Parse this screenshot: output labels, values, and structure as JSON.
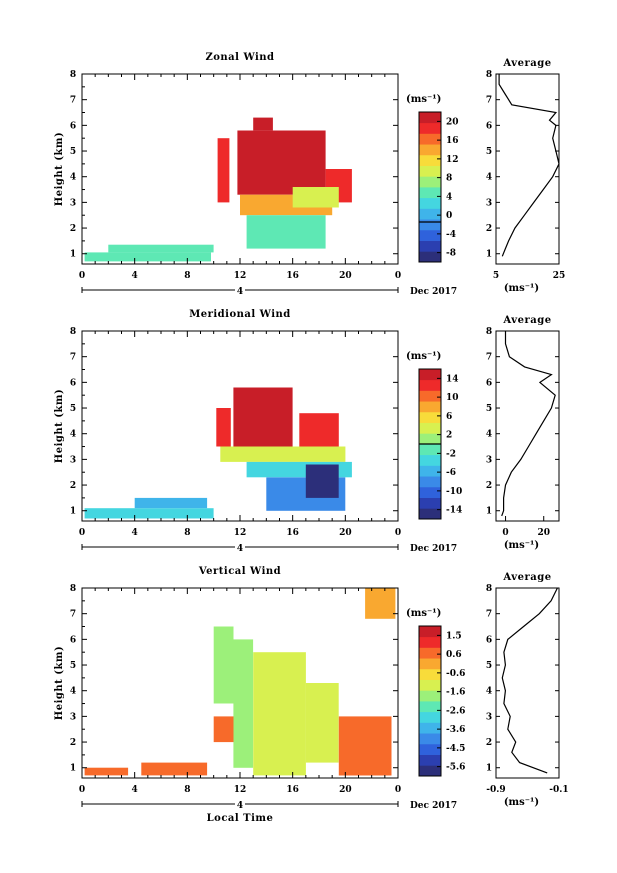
{
  "figure": {
    "date_label": "Dec 2017",
    "day_label": "4",
    "xlabel": "Local Time",
    "ylabel": "Height (km)",
    "unit": "(ms⁻¹)",
    "avg_title": "Average"
  },
  "colormap": [
    "#2c2f7a",
    "#2b3fb0",
    "#2f62dc",
    "#3a8ae8",
    "#3fb4ea",
    "#44d6e0",
    "#5ee8b4",
    "#9cf07a",
    "#d8f050",
    "#f8dc3a",
    "#f9a830",
    "#f76a2a",
    "#ee2a2a",
    "#c81e28"
  ],
  "chart_data": [
    {
      "type": "heatmap",
      "id": "zonal",
      "title": "Zonal Wind",
      "xlabel": "",
      "ylabel": "Height (km)",
      "x_ticks": [
        "0",
        "4",
        "8",
        "12",
        "16",
        "20",
        "0"
      ],
      "y_ticks": [
        "1",
        "2",
        "3",
        "4",
        "5",
        "6",
        "7",
        "8"
      ],
      "xlim": [
        0,
        24
      ],
      "ylim": [
        0.6,
        8
      ],
      "unit": "(ms⁻¹)",
      "colorbar": {
        "min": -8,
        "max": 22,
        "ticks": [
          "20",
          "16",
          "12",
          "8",
          "4",
          "0",
          "-4",
          "-8"
        ],
        "zero_line": 0
      },
      "regions": [
        {
          "t0": 0.2,
          "t1": 9.8,
          "h0": 0.7,
          "h1": 1.05,
          "v": 6
        },
        {
          "t0": 2.0,
          "t1": 10.0,
          "h0": 1.05,
          "h1": 1.35,
          "v": 5
        },
        {
          "t0": 10.3,
          "t1": 11.2,
          "h0": 3.0,
          "h1": 5.5,
          "v": 19
        },
        {
          "t0": 11.8,
          "t1": 18.5,
          "h0": 3.3,
          "h1": 5.8,
          "v": 20
        },
        {
          "t0": 13.0,
          "t1": 14.5,
          "h0": 5.8,
          "h1": 6.3,
          "v": 20
        },
        {
          "t0": 18.5,
          "t1": 20.5,
          "h0": 3.0,
          "h1": 4.3,
          "v": 18
        },
        {
          "t0": 12.0,
          "t1": 19.0,
          "h0": 2.5,
          "h1": 3.3,
          "v": 14
        },
        {
          "t0": 12.5,
          "t1": 18.5,
          "h0": 1.2,
          "h1": 2.5,
          "v": 6
        },
        {
          "t0": 16.0,
          "t1": 19.5,
          "h0": 2.8,
          "h1": 3.6,
          "v": 11
        }
      ],
      "average": {
        "xlim": [
          5,
          25
        ],
        "x_ticks": [
          "5",
          "25"
        ],
        "xlabel": "(ms⁻¹)",
        "h": [
          0.9,
          1.2,
          1.5,
          2.0,
          2.5,
          3.0,
          3.5,
          4.0,
          4.5,
          5.0,
          5.5,
          6.0,
          6.2,
          6.5,
          6.8,
          7.2,
          7.6,
          8.0
        ],
        "v": [
          7,
          8,
          9,
          11,
          14,
          17,
          20,
          23,
          25,
          24,
          23,
          24,
          22,
          24,
          10,
          8,
          6,
          6
        ]
      }
    },
    {
      "type": "heatmap",
      "id": "meridional",
      "title": "Meridional Wind",
      "xlabel": "",
      "ylabel": "Height (km)",
      "x_ticks": [
        "0",
        "4",
        "8",
        "12",
        "16",
        "20",
        "0"
      ],
      "y_ticks": [
        "1",
        "2",
        "3",
        "4",
        "5",
        "6",
        "7",
        "8"
      ],
      "xlim": [
        0,
        24
      ],
      "ylim": [
        0.6,
        8
      ],
      "unit": "(ms⁻¹)",
      "colorbar": {
        "min": -16,
        "max": 16,
        "ticks": [
          "14",
          "10",
          "6",
          "2",
          "-2",
          "-6",
          "-10",
          "-14"
        ],
        "zero_line": 0
      },
      "regions": [
        {
          "t0": 0.2,
          "t1": 10.0,
          "h0": 0.7,
          "h1": 1.1,
          "v": -4
        },
        {
          "t0": 4.0,
          "t1": 9.5,
          "h0": 1.1,
          "h1": 1.5,
          "v": -5
        },
        {
          "t0": 10.2,
          "t1": 11.3,
          "h0": 3.5,
          "h1": 5.0,
          "v": 13
        },
        {
          "t0": 11.5,
          "t1": 16.0,
          "h0": 3.5,
          "h1": 5.8,
          "v": 14
        },
        {
          "t0": 16.5,
          "t1": 19.5,
          "h0": 3.5,
          "h1": 4.8,
          "v": 13
        },
        {
          "t0": 10.5,
          "t1": 20.0,
          "h0": 2.9,
          "h1": 3.5,
          "v": 4
        },
        {
          "t0": 12.5,
          "t1": 20.5,
          "h0": 2.3,
          "h1": 2.9,
          "v": -4
        },
        {
          "t0": 14.0,
          "t1": 20.0,
          "h0": 1.0,
          "h1": 2.3,
          "v": -9
        },
        {
          "t0": 17.0,
          "t1": 19.5,
          "h0": 1.5,
          "h1": 2.8,
          "v": -14
        }
      ],
      "average": {
        "xlim": [
          -5,
          28
        ],
        "x_ticks": [
          "0",
          "20"
        ],
        "xlabel": "(ms⁻¹)",
        "h": [
          0.8,
          1.0,
          1.5,
          2.0,
          2.5,
          3.0,
          3.5,
          4.0,
          4.5,
          5.0,
          5.5,
          6.0,
          6.3,
          6.6,
          7.0,
          7.5,
          8.0
        ],
        "v": [
          -2,
          -1,
          -1,
          0,
          3,
          8,
          12,
          16,
          20,
          24,
          26,
          18,
          24,
          10,
          2,
          0,
          0
        ]
      }
    },
    {
      "type": "heatmap",
      "id": "vertical",
      "title": "Vertical Wind",
      "xlabel": "Local Time",
      "ylabel": "Height (km)",
      "x_ticks": [
        "0",
        "4",
        "8",
        "12",
        "16",
        "20",
        "0"
      ],
      "y_ticks": [
        "1",
        "2",
        "3",
        "4",
        "5",
        "6",
        "7",
        "8"
      ],
      "xlim": [
        0,
        24
      ],
      "ylim": [
        0.6,
        8
      ],
      "unit": "(ms⁻¹)",
      "colorbar": {
        "min": -6.2,
        "max": 2.2,
        "ticks": [
          "1.5",
          "0.6",
          "-0.6",
          "-1.6",
          "-2.6",
          "-3.6",
          "-4.5",
          "-5.6"
        ],
        "zero_line": null
      },
      "regions": [
        {
          "t0": 0.2,
          "t1": 3.5,
          "h0": 0.7,
          "h1": 1.0,
          "v": 0.4
        },
        {
          "t0": 4.5,
          "t1": 9.5,
          "h0": 0.7,
          "h1": 1.2,
          "v": 0.5
        },
        {
          "t0": 10.0,
          "t1": 11.5,
          "h0": 3.5,
          "h1": 6.5,
          "v": -1.6
        },
        {
          "t0": 11.5,
          "t1": 13.0,
          "h0": 1.0,
          "h1": 6.0,
          "v": -1.8
        },
        {
          "t0": 13.0,
          "t1": 17.0,
          "h0": 0.7,
          "h1": 5.5,
          "v": -1.4
        },
        {
          "t0": 17.0,
          "t1": 19.5,
          "h0": 1.2,
          "h1": 4.3,
          "v": -1.2
        },
        {
          "t0": 19.5,
          "t1": 23.5,
          "h0": 0.7,
          "h1": 3.0,
          "v": 0.4
        },
        {
          "t0": 21.5,
          "t1": 23.8,
          "h0": 6.8,
          "h1": 8.0,
          "v": 0.3
        },
        {
          "t0": 10.0,
          "t1": 11.5,
          "h0": 2.0,
          "h1": 3.0,
          "v": 0.6
        }
      ],
      "average": {
        "xlim": [
          -0.9,
          -0.1
        ],
        "x_ticks": [
          "-0.9",
          "-0.1"
        ],
        "xlabel": "(ms⁻¹)",
        "h": [
          0.8,
          1.2,
          1.6,
          2.0,
          2.5,
          3.0,
          3.5,
          4.0,
          4.5,
          5.0,
          5.5,
          6.0,
          6.5,
          7.0,
          7.5,
          8.0
        ],
        "v": [
          -0.25,
          -0.6,
          -0.7,
          -0.65,
          -0.75,
          -0.72,
          -0.8,
          -0.78,
          -0.82,
          -0.78,
          -0.8,
          -0.75,
          -0.55,
          -0.35,
          -0.2,
          -0.12
        ]
      }
    }
  ]
}
